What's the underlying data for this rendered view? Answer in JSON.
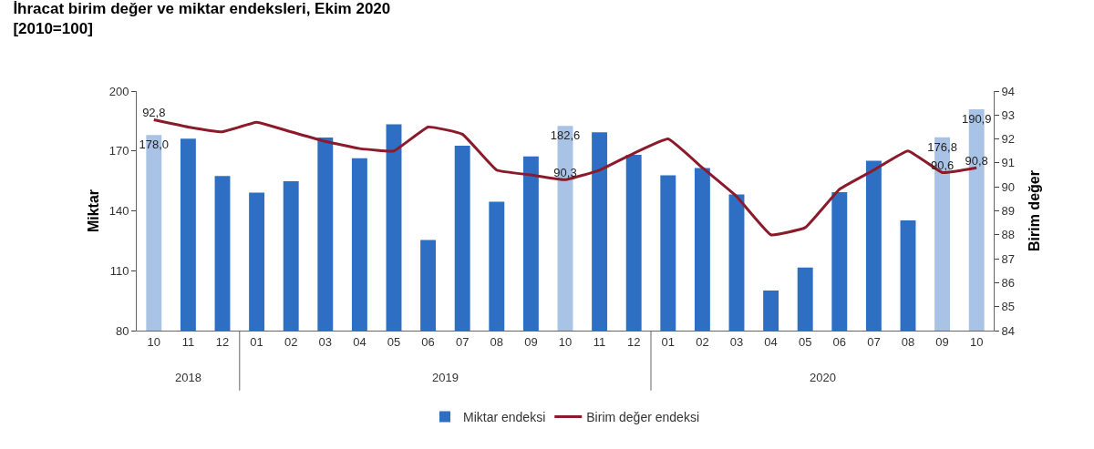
{
  "chart_data": {
    "type": "bar",
    "title": "İhracat birim değer ve miktar endeksleri, Ekim 2020",
    "subtitle": "[2010=100]",
    "ylabel": "Miktar",
    "y2label": "Birim değer",
    "categories": [
      "10",
      "11",
      "12",
      "01",
      "02",
      "03",
      "04",
      "05",
      "06",
      "07",
      "08",
      "09",
      "10",
      "11",
      "12",
      "01",
      "02",
      "03",
      "04",
      "05",
      "06",
      "07",
      "08",
      "09",
      "10"
    ],
    "series": [
      {
        "name": "Miktar endeksi",
        "color": "#2e6fc4",
        "colors": [
          "#a9c3e6",
          "#2e6fc4",
          "#2e6fc4",
          "#2e6fc4",
          "#2e6fc4",
          "#2e6fc4",
          "#2e6fc4",
          "#2e6fc4",
          "#2e6fc4",
          "#2e6fc4",
          "#2e6fc4",
          "#2e6fc4",
          "#a9c3e6",
          "#2e6fc4",
          "#2e6fc4",
          "#2e6fc4",
          "#2e6fc4",
          "#2e6fc4",
          "#2e6fc4",
          "#2e6fc4",
          "#2e6fc4",
          "#2e6fc4",
          "#2e6fc4",
          "#a9c3e6",
          "#a9c3e6"
        ],
        "values": [
          178.0,
          176.2,
          157.4,
          149.1,
          154.8,
          176.7,
          166.4,
          183.3,
          125.4,
          172.6,
          144.6,
          167.3,
          182.6,
          179.4,
          168.1,
          157.8,
          161.5,
          148.2,
          100.1,
          111.6,
          149.4,
          165.1,
          135.2,
          176.8,
          190.9
        ],
        "value_labels": [
          "178,0",
          null,
          null,
          null,
          null,
          null,
          null,
          null,
          null,
          null,
          null,
          null,
          "182,6",
          null,
          null,
          null,
          null,
          null,
          null,
          null,
          null,
          null,
          null,
          "176,8",
          "190,9"
        ]
      },
      {
        "name": "Birim değer endeksi",
        "type": "line",
        "axis": "y2",
        "color": "#8b1a2a",
        "values": [
          92.8,
          92.5,
          92.3,
          92.7,
          92.3,
          91.9,
          91.6,
          91.5,
          92.5,
          92.2,
          90.7,
          90.5,
          90.3,
          90.7,
          91.4,
          92.0,
          90.8,
          89.6,
          88.0,
          88.3,
          89.9,
          90.7,
          91.5,
          90.6,
          90.8
        ],
        "value_labels": [
          "92,8",
          null,
          null,
          null,
          null,
          null,
          null,
          null,
          null,
          null,
          null,
          null,
          "90,3",
          null,
          null,
          null,
          null,
          null,
          null,
          null,
          null,
          null,
          null,
          "90,6",
          "90,8"
        ]
      }
    ],
    "ylim": [
      80,
      200
    ],
    "yticks": [
      80,
      110,
      140,
      170,
      200
    ],
    "y2lim": [
      84,
      94
    ],
    "y2ticks": [
      84,
      85,
      86,
      87,
      88,
      89,
      90,
      91,
      92,
      93,
      94
    ],
    "annotations": [
      "2018",
      "2019",
      "2020"
    ],
    "legend": "bottom",
    "marker": "none",
    "line_style": "solid"
  }
}
